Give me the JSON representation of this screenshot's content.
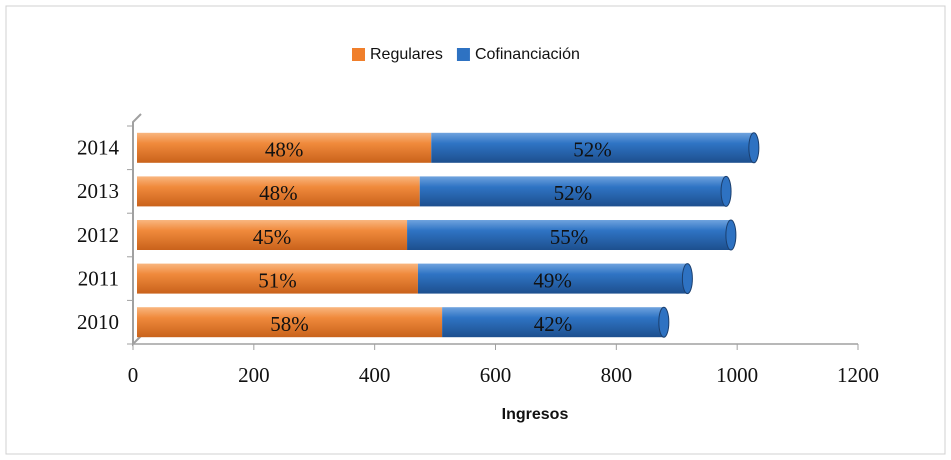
{
  "chart_data": {
    "type": "stacked-bar-horizontal",
    "xlabel": "Ingresos",
    "categories": [
      "2010",
      "2011",
      "2012",
      "2013",
      "2014"
    ],
    "series": [
      {
        "name": "Regulares",
        "color": "#f07f2b",
        "values": [
          505,
          465,
          447,
          468,
          487
        ],
        "value_labels": [
          "58%",
          "51%",
          "45%",
          "48%",
          "48%"
        ]
      },
      {
        "name": "Cofinanciación",
        "color": "#2e72c2",
        "values": [
          367,
          446,
          536,
          507,
          534
        ],
        "value_labels": [
          "42%",
          "49%",
          "55%",
          "52%",
          "52%"
        ]
      }
    ],
    "xlim": [
      0,
      1200
    ],
    "xticks": [
      0,
      200,
      400,
      600,
      800,
      1000,
      1200
    ],
    "legend": "top"
  }
}
